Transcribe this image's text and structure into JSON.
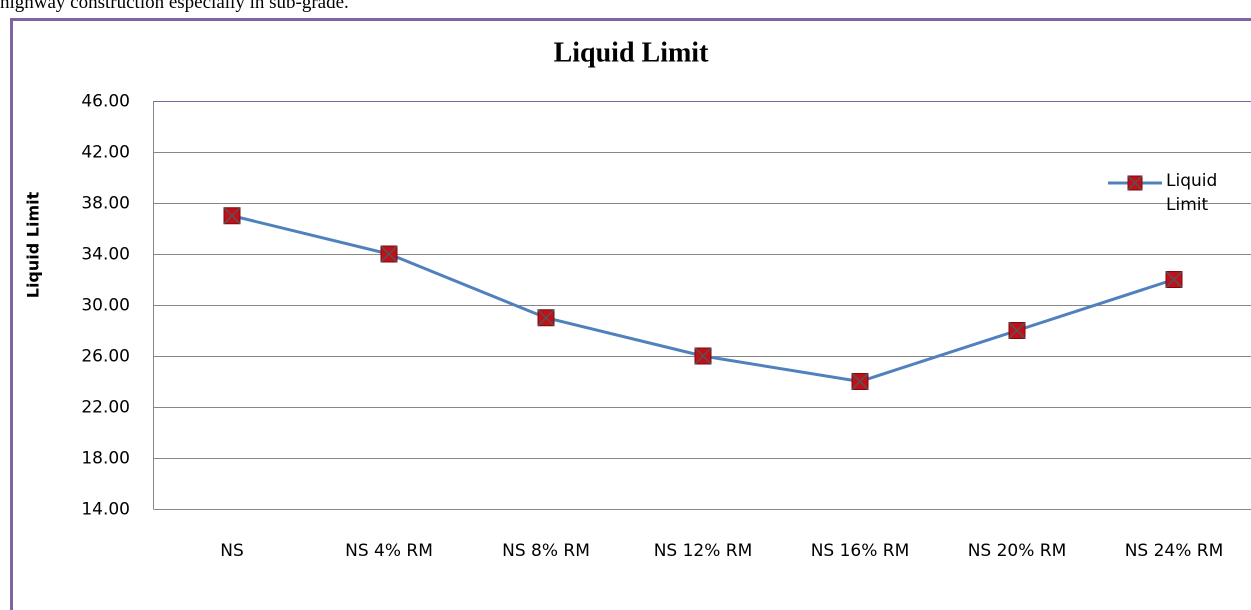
{
  "context_text": "highway construction especially in sub-grade.",
  "chart_data": {
    "type": "line",
    "title": "Liquid Limit",
    "y_label": "Liquid Limit",
    "categories": [
      "NS",
      "NS 4% RM",
      "NS 8% RM",
      "NS 12% RM",
      "NS 16% RM",
      "NS 20% RM",
      "NS 24% RM"
    ],
    "series": [
      {
        "name": "Liquid Limit",
        "color": "#4f81bd",
        "marker_color": "#c0101a",
        "values": [
          37,
          34,
          29,
          26,
          24,
          28,
          32
        ]
      }
    ],
    "ylim": [
      14,
      46
    ],
    "yticks": [
      {
        "value": 14,
        "label": "14.00"
      },
      {
        "value": 18,
        "label": "18.00"
      },
      {
        "value": 22,
        "label": "22.00"
      },
      {
        "value": 26,
        "label": "26.00"
      },
      {
        "value": 30,
        "label": "30.00"
      },
      {
        "value": 34,
        "label": "34.00"
      },
      {
        "value": 38,
        "label": "38.00"
      },
      {
        "value": 42,
        "label": "42.00"
      },
      {
        "value": 46,
        "label": "46.00"
      }
    ],
    "grid": true,
    "legend": "right"
  }
}
